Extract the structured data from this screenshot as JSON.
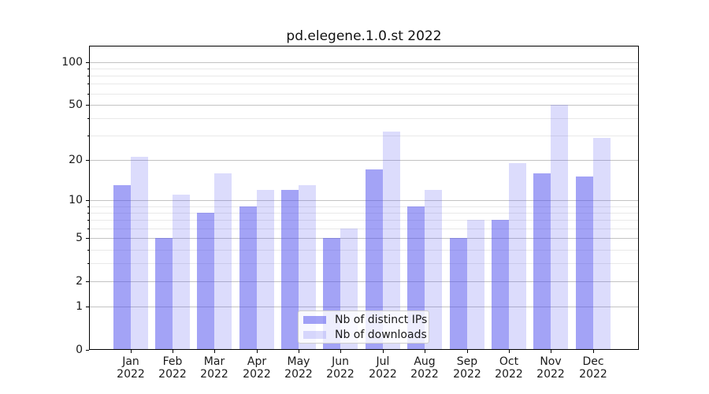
{
  "chart_data": {
    "type": "bar",
    "title": "pd.elegene.1.0.st 2022",
    "categories": [
      "Jan",
      "Feb",
      "Mar",
      "Apr",
      "May",
      "Jun",
      "Jul",
      "Aug",
      "Sep",
      "Oct",
      "Nov",
      "Dec"
    ],
    "category_year": "2022",
    "series": [
      {
        "name": "Nb of distinct IPs",
        "color": "rgba(78,78,238,0.52)",
        "values": [
          13,
          5,
          8,
          9,
          12,
          5,
          17,
          9,
          5,
          7,
          16,
          15
        ]
      },
      {
        "name": "Nb of downloads",
        "color": "rgba(78,78,238,0.20)",
        "values": [
          21,
          11,
          16,
          12,
          13,
          6,
          32,
          12,
          7,
          19,
          50,
          29
        ]
      }
    ],
    "y_scale": "log1p",
    "ylim": [
      0,
      130
    ],
    "y_major_ticks": [
      0,
      1,
      2,
      5,
      10,
      20,
      50,
      100
    ],
    "y_minor_ticks": [
      3,
      4,
      6,
      7,
      8,
      9,
      30,
      40,
      60,
      70,
      80,
      90
    ],
    "xlabel": "",
    "ylabel": "",
    "grid": "both",
    "legend_position": "lower-center"
  },
  "colors": {
    "bar_distinct_ips": "rgba(78,78,238,0.52)",
    "bar_downloads": "rgba(78,78,238,0.20)",
    "grid_major": "#c3c3c3",
    "grid_minor": "#e9e9e9",
    "spine": "#000000",
    "text": "#1a1a1a",
    "legend_border": "#cccccc",
    "legend_background": "rgba(255,255,255,0.8)"
  }
}
